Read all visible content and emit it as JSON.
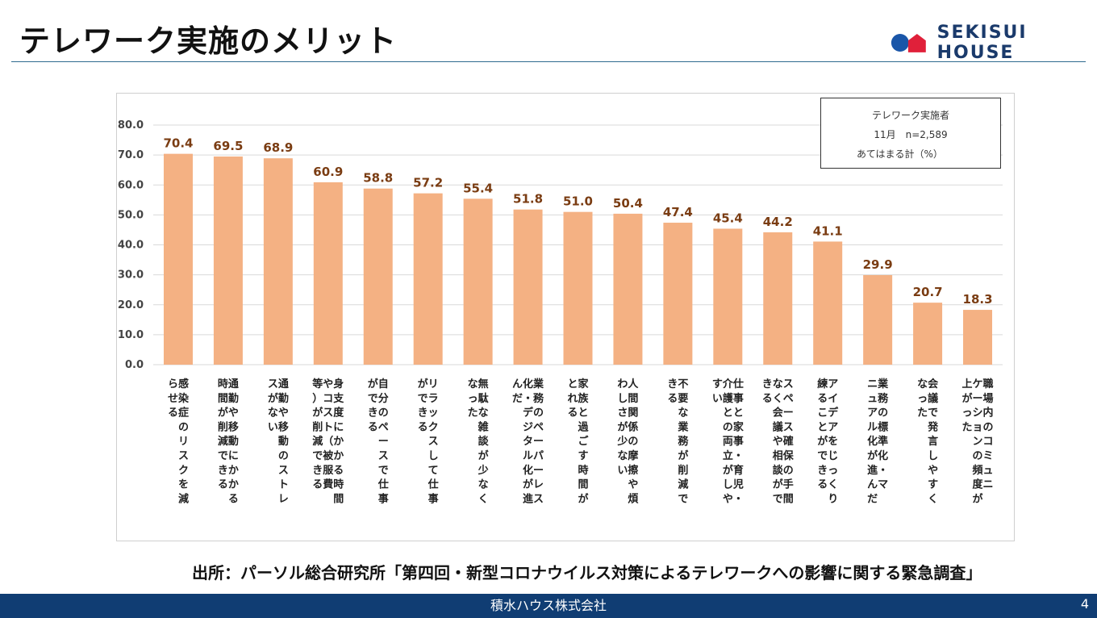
{
  "header": {
    "title": "テレワーク実施のメリット",
    "brand": "SEKISUI HOUSE"
  },
  "colors": {
    "bar": "#f4b183",
    "label": "#7a3c12",
    "footer": "#103d73",
    "logo_blue": "#1a56a8",
    "logo_red": "#e0203a"
  },
  "legend": {
    "line1": "テレワーク実施者",
    "line2": "11月　n=2,589",
    "line3": "あてはまる計（%）"
  },
  "chart_data": {
    "type": "bar",
    "title": "",
    "xlabel": "",
    "ylabel": "",
    "ylim": [
      0,
      80
    ],
    "yticks": [
      "0.0",
      "10.0",
      "20.0",
      "30.0",
      "40.0",
      "50.0",
      "60.0",
      "70.0",
      "80.0"
    ],
    "grid": true,
    "legend_position": "top-right",
    "categories": [
      [
        "感染症のリスクを減",
        "らせる"
      ],
      [
        "通勤や移動にかかる",
        "時間が削減できる"
      ],
      [
        "通勤や移動のストレ",
        "スがない"
      ],
      [
        "身支度にかかる時間",
        "やコスト（被服費",
        "等）が削減できる"
      ],
      [
        "自分のペースで仕事",
        "ができる"
      ],
      [
        "リラックスして仕事",
        "ができる"
      ],
      [
        "無駄な雑談が少なく",
        "なった"
      ],
      [
        "業務のペーパーレス",
        "化・デジタル化が進",
        "んだ"
      ],
      [
        "家族と過ごす時間が",
        "とれる"
      ],
      [
        "人間関係の摩擦や煩",
        "わしさが少ない"
      ],
      [
        "不要な業務が削減で",
        "きる"
      ],
      [
        "仕事と家事・育児・",
        "介護との両立がしや",
        "すい"
      ],
      [
        "スペース確保の手間",
        "なく会議や相談がで",
        "きる"
      ],
      [
        "アイデアをじっくり",
        "練ることができる"
      ],
      [
        "業務の標準化・マ",
        "ニュアル化が進んだ"
      ],
      [
        "会議で発言しやすく",
        "なった"
      ],
      [
        "職場内のコミュニ",
        "ケーションの頻度が",
        "上がった"
      ]
    ],
    "values": [
      70.4,
      69.5,
      68.9,
      60.9,
      58.8,
      57.2,
      55.4,
      51.8,
      51.0,
      50.4,
      47.4,
      45.4,
      44.2,
      41.1,
      29.9,
      20.7,
      18.3
    ],
    "value_labels": [
      "70.4",
      "69.5",
      "68.9",
      "60.9",
      "58.8",
      "57.2",
      "55.4",
      "51.8",
      "51.0",
      "50.4",
      "47.4",
      "45.4",
      "44.2",
      "41.1",
      "29.9",
      "20.7",
      "18.3"
    ]
  },
  "source": "出所：パーソル総合研究所「第四回・新型コロナウイルス対策によるテレワークへの影響に関する緊急調査」",
  "footer": {
    "company": "積水ハウス株式会社",
    "page_number": "4"
  }
}
